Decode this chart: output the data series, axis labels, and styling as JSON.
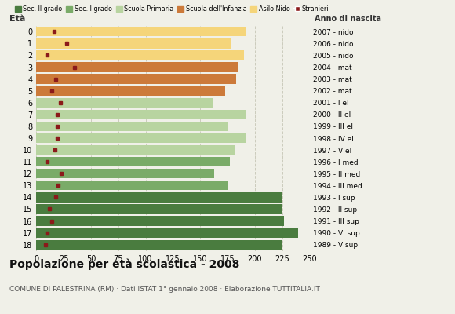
{
  "ages": [
    18,
    17,
    16,
    15,
    14,
    13,
    12,
    11,
    10,
    9,
    8,
    7,
    6,
    5,
    4,
    3,
    2,
    1,
    0
  ],
  "bar_values": [
    225,
    240,
    227,
    225,
    225,
    175,
    163,
    177,
    182,
    192,
    175,
    192,
    162,
    173,
    183,
    185,
    190,
    178,
    192
  ],
  "stranieri": [
    8,
    10,
    14,
    12,
    18,
    20,
    23,
    10,
    17,
    19,
    19,
    19,
    22,
    14,
    18,
    35,
    10,
    28,
    16
  ],
  "bar_colors": [
    "#4a7c3f",
    "#4a7c3f",
    "#4a7c3f",
    "#4a7c3f",
    "#4a7c3f",
    "#7aab68",
    "#7aab68",
    "#7aab68",
    "#b8d4a0",
    "#b8d4a0",
    "#b8d4a0",
    "#b8d4a0",
    "#b8d4a0",
    "#cc7a3a",
    "#cc7a3a",
    "#cc7a3a",
    "#f5d57a",
    "#f5d57a",
    "#f5d57a"
  ],
  "right_labels": [
    "1989 - V sup",
    "1990 - VI sup",
    "1991 - III sup",
    "1992 - II sup",
    "1993 - I sup",
    "1994 - III med",
    "1995 - II med",
    "1996 - I med",
    "1997 - V el",
    "1998 - IV el",
    "1999 - III el",
    "2000 - II el",
    "2001 - I el",
    "2002 - mat",
    "2003 - mat",
    "2004 - mat",
    "2005 - nido",
    "2006 - nido",
    "2007 - nido"
  ],
  "legend_labels": [
    "Sec. II grado",
    "Sec. I grado",
    "Scuola Primaria",
    "Scuola dell'Infanzia",
    "Asilo Nido",
    "Stranieri"
  ],
  "legend_colors": [
    "#4a7c3f",
    "#7aab68",
    "#b8d4a0",
    "#cc7a3a",
    "#f5d57a",
    "#8b1a1a"
  ],
  "title": "Popolazione per età scolastica - 2008",
  "subtitle": "COMUNE DI PALESTRINA (RM) · Dati ISTAT 1° gennaio 2008 · Elaborazione TUTTITALIA.IT",
  "xlabel_eta": "Età",
  "xlabel_anno": "Anno di nascita",
  "xlim": [
    0,
    250
  ],
  "xticks": [
    0,
    25,
    50,
    75,
    100,
    125,
    150,
    175,
    200,
    225,
    250
  ],
  "background_color": "#f0f0e8",
  "stranieri_color": "#8b1a1a",
  "grid_color": "#c8c8b8"
}
